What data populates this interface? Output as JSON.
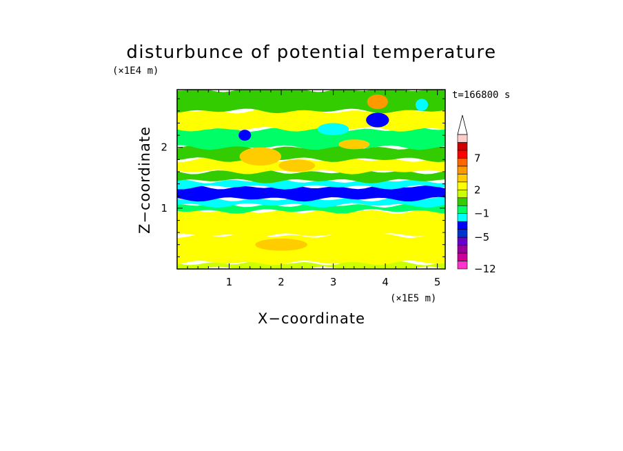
{
  "chart_data": {
    "type": "heatmap",
    "title": "disturbunce of potential temperature",
    "xlabel": "X−coordinate",
    "ylabel": "Z−coordinate",
    "x_unit": "(×1E5 m)",
    "y_unit": "(×1E4 m)",
    "time_label": "t=166800 s",
    "xlim": [
      0,
      5.15
    ],
    "ylim": [
      0,
      2.95
    ],
    "x_ticks": [
      1,
      2,
      3,
      4,
      5
    ],
    "y_ticks": [
      1,
      2
    ],
    "colorbar": {
      "levels": [
        -12,
        -10,
        -8,
        -6,
        -5,
        -4,
        -3,
        -1,
        0,
        1,
        2,
        3,
        5,
        6,
        7,
        8,
        9
      ],
      "colors": [
        "#ff33cc",
        "#cc0099",
        "#990099",
        "#6600cc",
        "#0033cc",
        "#0000ff",
        "#00ffff",
        "#00ff66",
        "#33cc00",
        "#ccff00",
        "#ffff00",
        "#ffcc00",
        "#ff9900",
        "#ff6600",
        "#ff0000",
        "#cc0000",
        "#ffcccc"
      ],
      "labels": [
        "−12",
        "−5",
        "−1",
        "2",
        "7"
      ],
      "extend": "max"
    },
    "bands": [
      {
        "zmin": 0.0,
        "zmax": 0.1,
        "value": 1
      },
      {
        "zmin": 0.1,
        "zmax": 0.55,
        "value": 2
      },
      {
        "zmin": 0.55,
        "zmax": 0.95,
        "value": 2
      },
      {
        "zmin": 0.95,
        "zmax": 1.05,
        "value": -1
      },
      {
        "zmin": 1.05,
        "zmax": 1.15,
        "value": -2
      },
      {
        "zmin": 1.15,
        "zmax": 1.35,
        "value": -4
      },
      {
        "zmin": 1.35,
        "zmax": 1.45,
        "value": -2
      },
      {
        "zmin": 1.45,
        "zmax": 1.6,
        "value": 0
      },
      {
        "zmin": 1.6,
        "zmax": 1.8,
        "value": 2
      },
      {
        "zmin": 1.8,
        "zmax": 2.0,
        "value": 0
      },
      {
        "zmin": 2.0,
        "zmax": 2.3,
        "value": -1
      },
      {
        "zmin": 2.3,
        "zmax": 2.6,
        "value": 2
      },
      {
        "zmin": 2.6,
        "zmax": 2.95,
        "value": 0
      }
    ],
    "features": [
      {
        "x": 1.3,
        "z": 2.2,
        "rx": 0.12,
        "rz": 0.09,
        "value": -4
      },
      {
        "x": 1.6,
        "z": 1.85,
        "rx": 0.4,
        "rz": 0.15,
        "value": 3
      },
      {
        "x": 2.3,
        "z": 1.7,
        "rx": 0.35,
        "rz": 0.1,
        "value": 3
      },
      {
        "x": 3.0,
        "z": 2.3,
        "rx": 0.3,
        "rz": 0.1,
        "value": -3
      },
      {
        "x": 3.4,
        "z": 2.05,
        "rx": 0.3,
        "rz": 0.08,
        "value": 4
      },
      {
        "x": 3.85,
        "z": 2.45,
        "rx": 0.22,
        "rz": 0.12,
        "value": -4
      },
      {
        "x": 3.85,
        "z": 2.75,
        "rx": 0.2,
        "rz": 0.12,
        "value": 5
      },
      {
        "x": 4.7,
        "z": 2.7,
        "rx": 0.12,
        "rz": 0.1,
        "value": -3
      },
      {
        "x": 2.0,
        "z": 0.4,
        "rx": 0.5,
        "rz": 0.1,
        "value": 3
      }
    ]
  }
}
